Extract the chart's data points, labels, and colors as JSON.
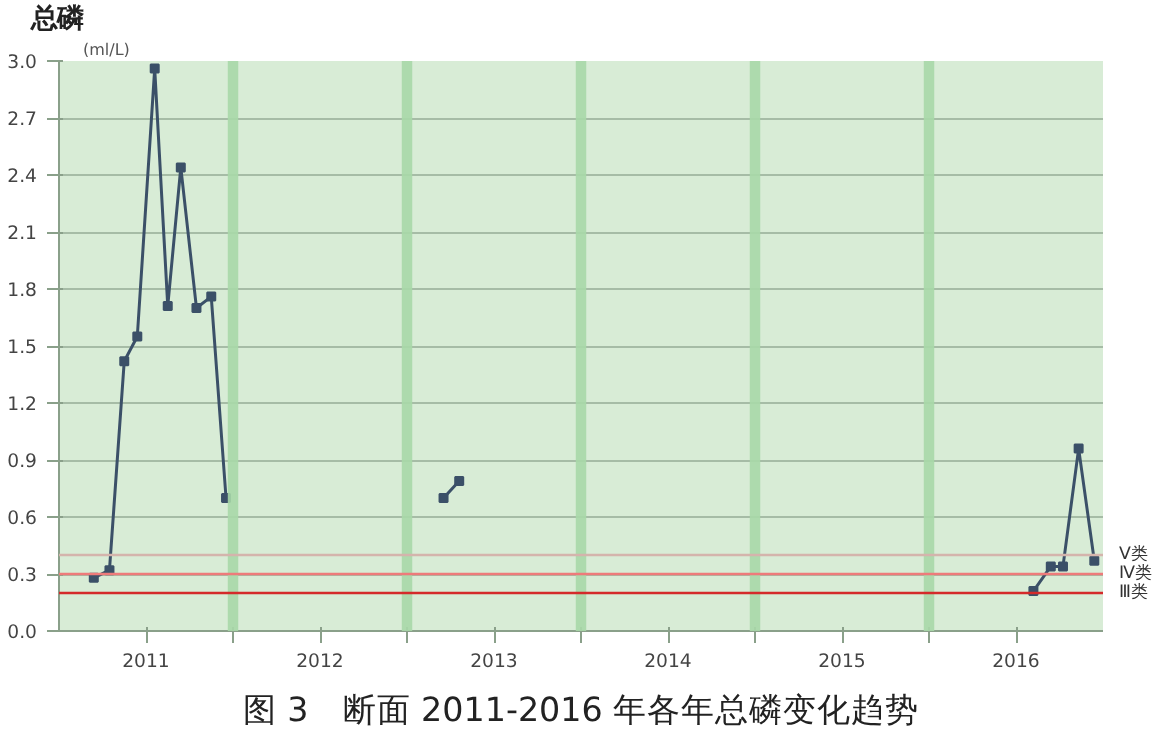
{
  "chart_data": {
    "type": "line",
    "title": "总磷",
    "subtitle": "(ml/L)",
    "x": [
      2011.2,
      2011.29,
      2011.375,
      2011.45,
      2011.55,
      2011.625,
      2011.7,
      2011.79,
      2011.875,
      2011.96,
      2012.5,
      2013.21,
      2013.3,
      2014.5,
      2016.6,
      2016.7,
      2016.77,
      2016.86,
      2016.95
    ],
    "series": [
      {
        "color": "#3b5068",
        "values": [
          0.28,
          0.32,
          1.42,
          1.55,
          2.96,
          1.71,
          2.44,
          1.7,
          1.76,
          0.7,
          null,
          0.7,
          0.79,
          null,
          0.21,
          0.34,
          0.34,
          0.96,
          0.37
        ]
      }
    ],
    "xlim": [
      2011,
      2017
    ],
    "ylim": [
      0,
      3.0
    ],
    "xticks": [
      {
        "value": 2011.5,
        "label": "2011"
      },
      {
        "value": 2012.5,
        "label": "2012"
      },
      {
        "value": 2013.5,
        "label": "2013"
      },
      {
        "value": 2014.5,
        "label": "2014"
      },
      {
        "value": 2015.5,
        "label": "2015"
      },
      {
        "value": 2016.5,
        "label": "2016"
      },
      {
        "value": 2012,
        "label": null
      },
      {
        "value": 2013,
        "label": null
      },
      {
        "value": 2014,
        "label": null
      },
      {
        "value": 2015,
        "label": null
      },
      {
        "value": 2016,
        "label": null
      }
    ],
    "yticks": [
      {
        "value": 0,
        "label": "0.0"
      },
      {
        "value": 0.3,
        "label": "0.3"
      },
      {
        "value": 0.6,
        "label": "0.6"
      },
      {
        "value": 0.9,
        "label": "0.9"
      },
      {
        "value": 1.2,
        "label": "1.2"
      },
      {
        "value": 1.5,
        "label": "1.5"
      },
      {
        "value": 1.8,
        "label": "1.8"
      },
      {
        "value": 2.1,
        "label": "2.1"
      },
      {
        "value": 2.4,
        "label": "2.4"
      },
      {
        "value": 2.7,
        "label": "2.7"
      },
      {
        "value": 3.0,
        "label": "3.0"
      }
    ],
    "grid": "y",
    "marker": "square",
    "line_style": "solid",
    "ref_lines": [
      {
        "axis": "y",
        "value": 0.4,
        "label": "Ⅴ类",
        "color": "#d4b4ac"
      },
      {
        "axis": "y",
        "value": 0.3,
        "label": "Ⅳ类",
        "color": "#ee7a7a"
      },
      {
        "axis": "y",
        "value": 0.2,
        "label": "Ⅲ类",
        "color": "#d42a2a"
      }
    ],
    "bands": [
      {
        "axis": "x",
        "from": 2011.97,
        "to": 2012.03,
        "color": "#a8d8a8"
      },
      {
        "axis": "x",
        "from": 2012.97,
        "to": 2013.03,
        "color": "#a8d8a8"
      },
      {
        "axis": "x",
        "from": 2013.97,
        "to": 2014.03,
        "color": "#a8d8a8"
      },
      {
        "axis": "x",
        "from": 2014.97,
        "to": 2015.03,
        "color": "#a8d8a8"
      },
      {
        "axis": "x",
        "from": 2015.97,
        "to": 2016.03,
        "color": "#a8d8a8"
      }
    ],
    "annotations": [
      "图 3　断面 2011-2016 年各年总磷变化趋势"
    ]
  }
}
